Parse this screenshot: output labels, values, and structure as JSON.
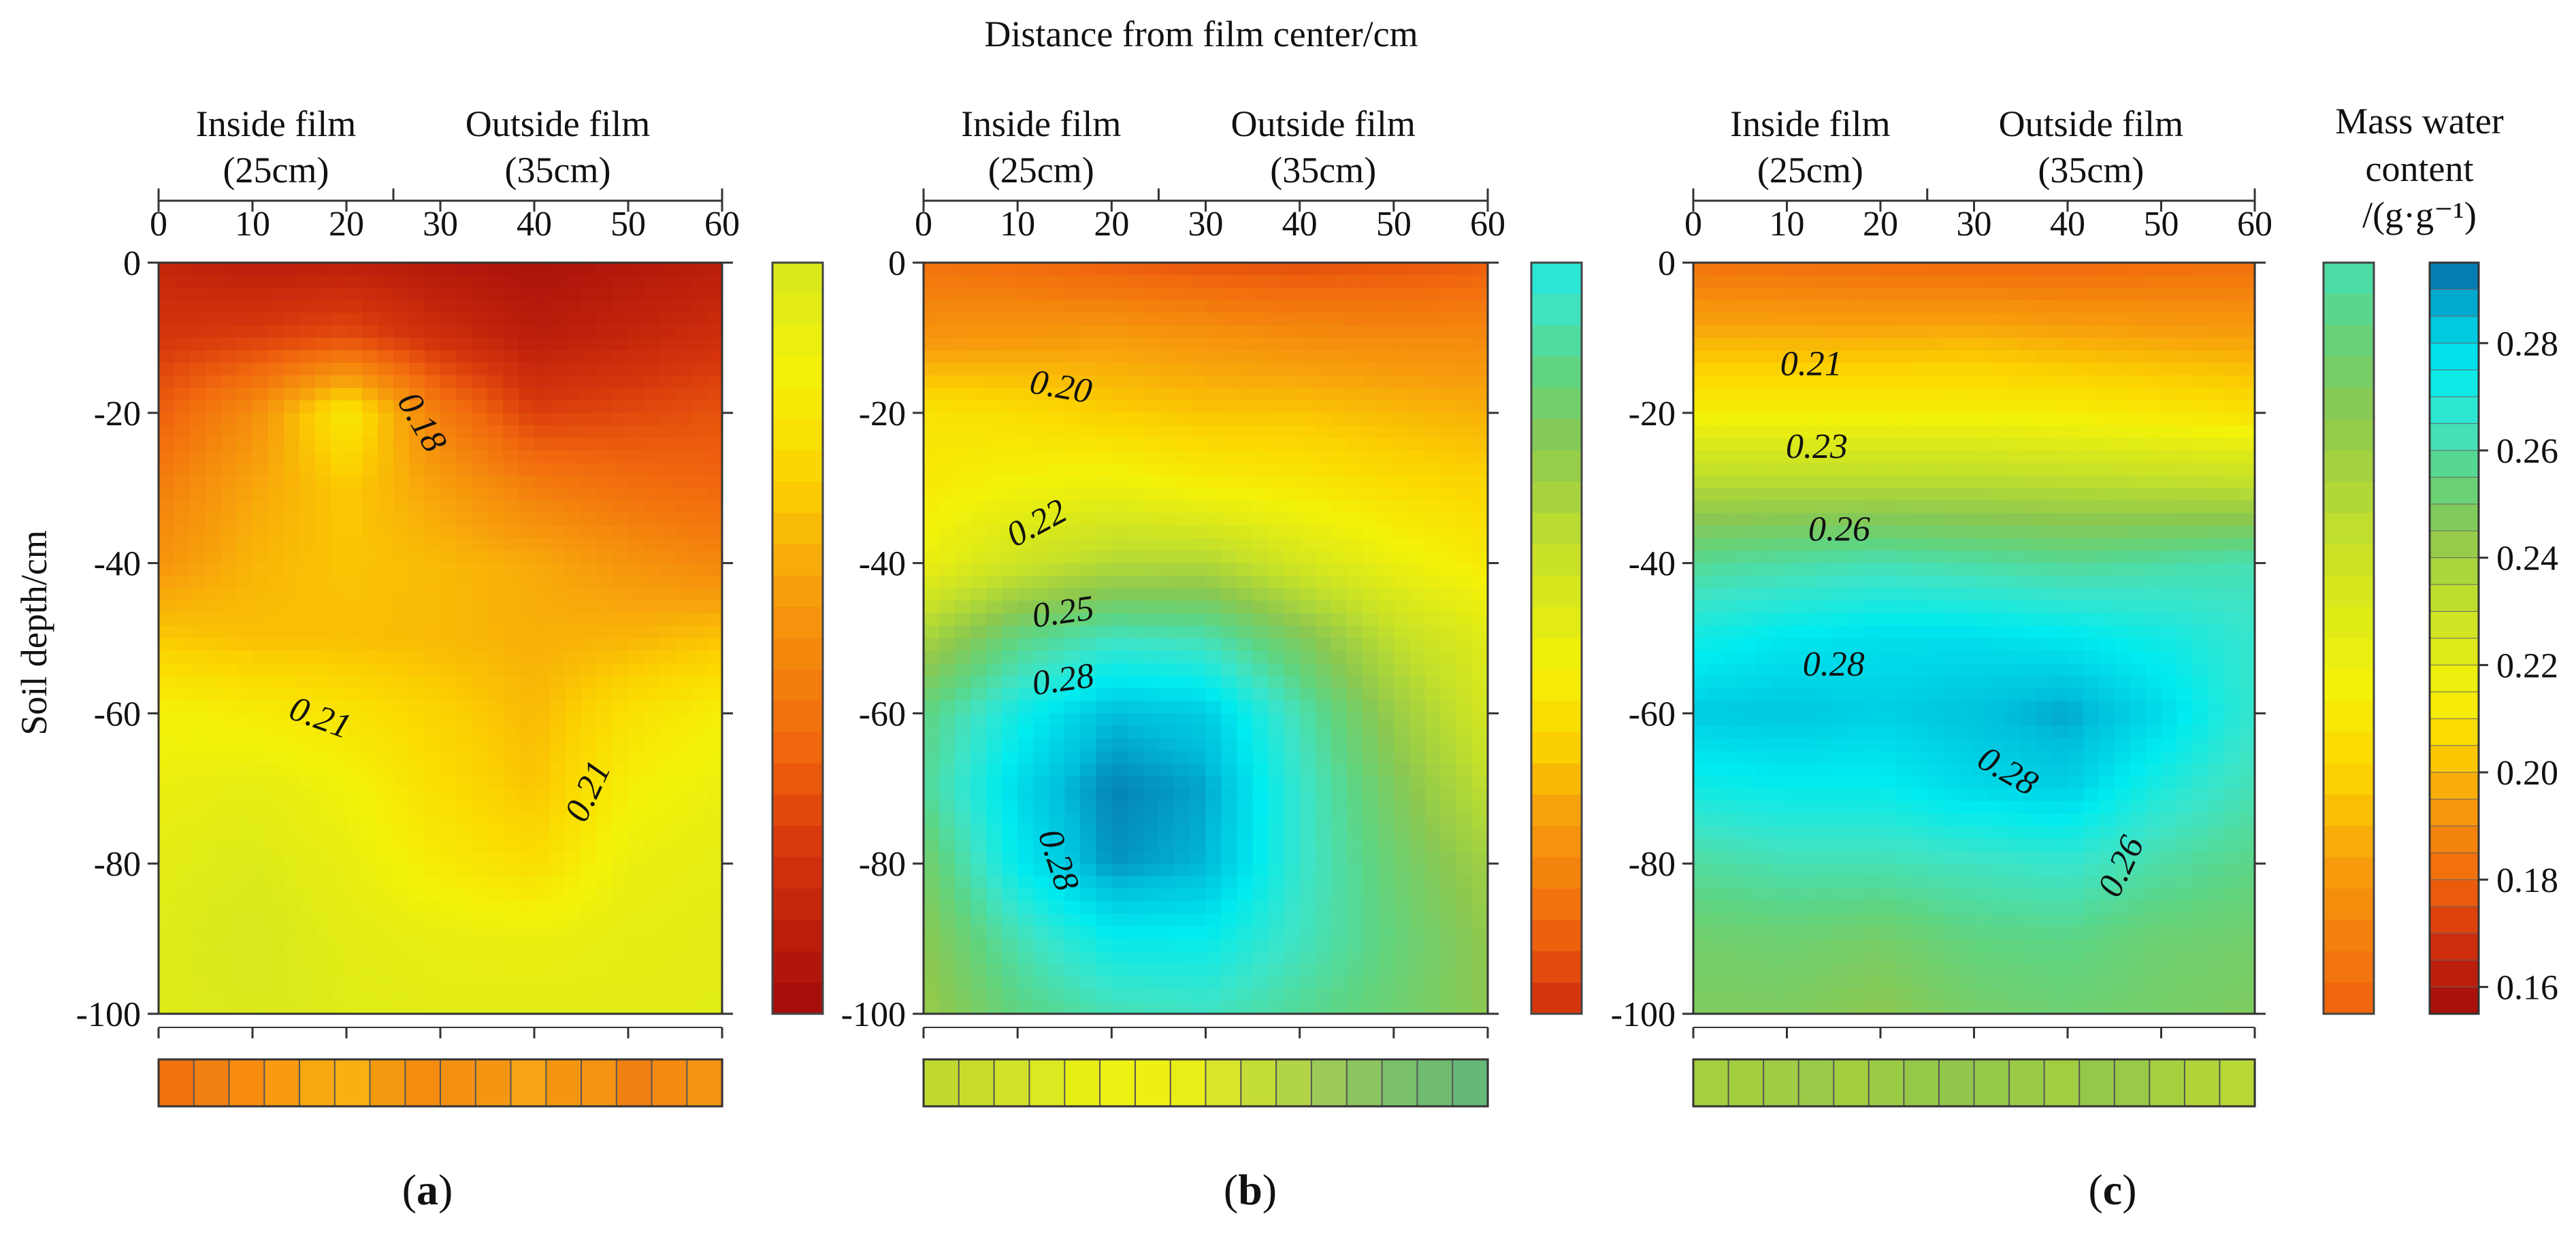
{
  "chart_data": {
    "type": "heatmap",
    "title": "Distance from film center/cm",
    "ylabel": "Soil depth/cm",
    "xlim": [
      0,
      60
    ],
    "ylim": [
      -100,
      0
    ],
    "x_ticks": [
      "0",
      "10",
      "20",
      "30",
      "40",
      "50",
      "60"
    ],
    "y_ticks": [
      "0",
      "-20",
      "-40",
      "-60",
      "-80",
      "-100"
    ],
    "film_boundary_cm": 25,
    "inside_label": "Inside film",
    "inside_width": "(25cm)",
    "outside_label": "Outside film",
    "outside_width": "(35cm)",
    "colorbar": {
      "title_line1": "Mass water",
      "title_line2": "content",
      "unit": "/(g·g⁻¹)",
      "min": 0.155,
      "max": 0.295,
      "tick_values": [
        0.16,
        0.18,
        0.2,
        0.22,
        0.24,
        0.26,
        0.28
      ],
      "ticks": [
        "0.16",
        "0.18",
        "0.20",
        "0.22",
        "0.24",
        "0.26",
        "0.28"
      ]
    },
    "panels": [
      {
        "label": "(a)",
        "letter": "a",
        "profiles": [
          {
            "depth": 0,
            "x": [
              0,
              10,
              20,
              30,
              40,
              50,
              60
            ],
            "values": [
              0.165,
              0.162,
              0.163,
              0.16,
              0.158,
              0.16,
              0.162
            ]
          },
          {
            "depth": -10,
            "x": [
              0,
              10,
              20,
              30,
              40,
              50,
              60
            ],
            "values": [
              0.17,
              0.172,
              0.175,
              0.168,
              0.162,
              0.165,
              0.168
            ]
          },
          {
            "depth": -20,
            "x": [
              0,
              10,
              20,
              30,
              40,
              50,
              60
            ],
            "values": [
              0.178,
              0.19,
              0.212,
              0.185,
              0.172,
              0.174,
              0.176
            ]
          },
          {
            "depth": -30,
            "x": [
              0,
              10,
              20,
              30,
              40,
              50,
              60
            ],
            "values": [
              0.186,
              0.196,
              0.203,
              0.195,
              0.186,
              0.182,
              0.18
            ]
          },
          {
            "depth": -40,
            "x": [
              0,
              10,
              20,
              30,
              40,
              50,
              60
            ],
            "values": [
              0.192,
              0.199,
              0.202,
              0.2,
              0.197,
              0.192,
              0.188
            ]
          },
          {
            "depth": -50,
            "x": [
              0,
              10,
              20,
              30,
              40,
              50,
              60
            ],
            "values": [
              0.203,
              0.201,
              0.201,
              0.2,
              0.198,
              0.199,
              0.202
            ]
          },
          {
            "depth": -60,
            "x": [
              0,
              10,
              20,
              30,
              40,
              50,
              60
            ],
            "values": [
              0.215,
              0.213,
              0.21,
              0.205,
              0.2,
              0.209,
              0.214
            ]
          },
          {
            "depth": -70,
            "x": [
              0,
              10,
              20,
              30,
              40,
              50,
              60
            ],
            "values": [
              0.218,
              0.22,
              0.216,
              0.208,
              0.202,
              0.214,
              0.218
            ]
          },
          {
            "depth": -80,
            "x": [
              0,
              10,
              20,
              30,
              40,
              50,
              60
            ],
            "values": [
              0.221,
              0.223,
              0.219,
              0.212,
              0.208,
              0.218,
              0.22
            ]
          },
          {
            "depth": -90,
            "x": [
              0,
              10,
              20,
              30,
              40,
              50,
              60
            ],
            "values": [
              0.222,
              0.225,
              0.221,
              0.219,
              0.218,
              0.22,
              0.221
            ]
          },
          {
            "depth": -100,
            "x": [
              0,
              10,
              20,
              30,
              40,
              50,
              60
            ],
            "values": [
              0.222,
              0.224,
              0.222,
              0.221,
              0.221,
              0.221,
              0.221
            ]
          }
        ],
        "contour_labels": [
          "0.18",
          "0.21",
          "0.21"
        ],
        "colorbar_min": 0.155,
        "colorbar_max": 0.225,
        "strip_colors": [
          "#f2720e",
          "#f38012",
          "#f88c10",
          "#fa9a10",
          "#f7a810",
          "#f9b012",
          "#f59a10",
          "#f58c10",
          "#f49012",
          "#f59612",
          "#f7a414",
          "#f4960f",
          "#f49212",
          "#f28010",
          "#f48a12",
          "#f59412"
        ]
      },
      {
        "label": "(b)",
        "letter": "b",
        "profiles": [
          {
            "depth": 0,
            "x": [
              0,
              10,
              20,
              30,
              40,
              50,
              60
            ],
            "values": [
              0.183,
              0.181,
              0.178,
              0.176,
              0.175,
              0.176,
              0.178
            ]
          },
          {
            "depth": -10,
            "x": [
              0,
              10,
              20,
              30,
              40,
              50,
              60
            ],
            "values": [
              0.192,
              0.193,
              0.194,
              0.192,
              0.19,
              0.189,
              0.189
            ]
          },
          {
            "depth": -20,
            "x": [
              0,
              10,
              20,
              30,
              40,
              50,
              60
            ],
            "values": [
              0.21,
              0.208,
              0.204,
              0.202,
              0.202,
              0.2,
              0.198
            ]
          },
          {
            "depth": -30,
            "x": [
              0,
              10,
              20,
              30,
              40,
              50,
              60
            ],
            "values": [
              0.212,
              0.216,
              0.218,
              0.214,
              0.212,
              0.208,
              0.206
            ]
          },
          {
            "depth": -40,
            "x": [
              0,
              10,
              20,
              30,
              40,
              50,
              60
            ],
            "values": [
              0.218,
              0.228,
              0.235,
              0.236,
              0.226,
              0.218,
              0.212
            ]
          },
          {
            "depth": -50,
            "x": [
              0,
              10,
              20,
              30,
              40,
              50,
              60
            ],
            "values": [
              0.238,
              0.255,
              0.264,
              0.262,
              0.248,
              0.232,
              0.222
            ]
          },
          {
            "depth": -60,
            "x": [
              0,
              10,
              20,
              30,
              40,
              50,
              60
            ],
            "values": [
              0.255,
              0.272,
              0.285,
              0.282,
              0.262,
              0.242,
              0.226
            ]
          },
          {
            "depth": -70,
            "x": [
              0,
              10,
              20,
              30,
              40,
              50,
              60
            ],
            "values": [
              0.258,
              0.279,
              0.292,
              0.288,
              0.266,
              0.248,
              0.232
            ]
          },
          {
            "depth": -80,
            "x": [
              0,
              10,
              20,
              30,
              40,
              50,
              60
            ],
            "values": [
              0.25,
              0.275,
              0.29,
              0.286,
              0.266,
              0.252,
              0.24
            ]
          },
          {
            "depth": -90,
            "x": [
              0,
              10,
              20,
              30,
              40,
              50,
              60
            ],
            "values": [
              0.245,
              0.262,
              0.274,
              0.274,
              0.264,
              0.254,
              0.244
            ]
          },
          {
            "depth": -100,
            "x": [
              0,
              10,
              20,
              30,
              40,
              50,
              60
            ],
            "values": [
              0.242,
              0.255,
              0.262,
              0.264,
              0.258,
              0.252,
              0.245
            ]
          }
        ],
        "contour_labels": [
          "0.20",
          "0.22",
          "0.25",
          "0.28",
          "0.28"
        ],
        "colorbar_min": 0.168,
        "colorbar_max": 0.27,
        "strip_colors": [
          "#c0d830",
          "#cadc2a",
          "#d2e22a",
          "#dce821",
          "#e6ee14",
          "#eef213",
          "#eef013",
          "#e8ee18",
          "#d8e62a",
          "#c4dc36",
          "#b2d448",
          "#9cca58",
          "#8cc460",
          "#7ac06a",
          "#6fbc70",
          "#66b878"
        ]
      },
      {
        "label": "(c)",
        "letter": "c",
        "profiles": [
          {
            "depth": 0,
            "x": [
              0,
              10,
              20,
              30,
              40,
              50,
              60
            ],
            "values": [
              0.183,
              0.182,
              0.181,
              0.18,
              0.18,
              0.181,
              0.182
            ]
          },
          {
            "depth": -10,
            "x": [
              0,
              10,
              20,
              30,
              40,
              50,
              60
            ],
            "values": [
              0.198,
              0.198,
              0.198,
              0.199,
              0.197,
              0.196,
              0.195
            ]
          },
          {
            "depth": -20,
            "x": [
              0,
              10,
              20,
              30,
              40,
              50,
              60
            ],
            "values": [
              0.214,
              0.214,
              0.214,
              0.214,
              0.213,
              0.211,
              0.209
            ]
          },
          {
            "depth": -30,
            "x": [
              0,
              10,
              20,
              30,
              40,
              50,
              60
            ],
            "values": [
              0.236,
              0.236,
              0.236,
              0.236,
              0.235,
              0.234,
              0.233
            ]
          },
          {
            "depth": -40,
            "x": [
              0,
              10,
              20,
              30,
              40,
              50,
              60
            ],
            "values": [
              0.258,
              0.26,
              0.262,
              0.26,
              0.258,
              0.26,
              0.262
            ]
          },
          {
            "depth": -50,
            "x": [
              0,
              10,
              20,
              30,
              40,
              50,
              60
            ],
            "values": [
              0.272,
              0.276,
              0.278,
              0.278,
              0.276,
              0.272,
              0.266
            ]
          },
          {
            "depth": -60,
            "x": [
              0,
              10,
              20,
              30,
              40,
              50,
              60
            ],
            "values": [
              0.282,
              0.283,
              0.281,
              0.284,
              0.288,
              0.279,
              0.266
            ]
          },
          {
            "depth": -70,
            "x": [
              0,
              10,
              20,
              30,
              40,
              50,
              60
            ],
            "values": [
              0.272,
              0.274,
              0.274,
              0.279,
              0.281,
              0.27,
              0.262
            ]
          },
          {
            "depth": -80,
            "x": [
              0,
              10,
              20,
              30,
              40,
              50,
              60
            ],
            "values": [
              0.259,
              0.262,
              0.262,
              0.264,
              0.266,
              0.26,
              0.256
            ]
          },
          {
            "depth": -90,
            "x": [
              0,
              10,
              20,
              30,
              40,
              50,
              60
            ],
            "values": [
              0.251,
              0.252,
              0.25,
              0.255,
              0.256,
              0.252,
              0.251
            ]
          },
          {
            "depth": -100,
            "x": [
              0,
              10,
              20,
              30,
              40,
              50,
              60
            ],
            "values": [
              0.248,
              0.248,
              0.245,
              0.25,
              0.252,
              0.25,
              0.248
            ]
          }
        ],
        "contour_labels": [
          "0.21",
          "0.23",
          "0.26",
          "0.28",
          "0.28",
          "0.26"
        ],
        "colorbar_min": 0.178,
        "colorbar_max": 0.262,
        "strip_colors": [
          "#a6d03e",
          "#a2ce40",
          "#9ecc44",
          "#9acb48",
          "#a2ce40",
          "#9acb44",
          "#96c848",
          "#92c64c",
          "#96c848",
          "#9acb46",
          "#a0cd42",
          "#94c74a",
          "#98c947",
          "#a6d03e",
          "#b0d43a",
          "#b8d836"
        ]
      }
    ]
  }
}
